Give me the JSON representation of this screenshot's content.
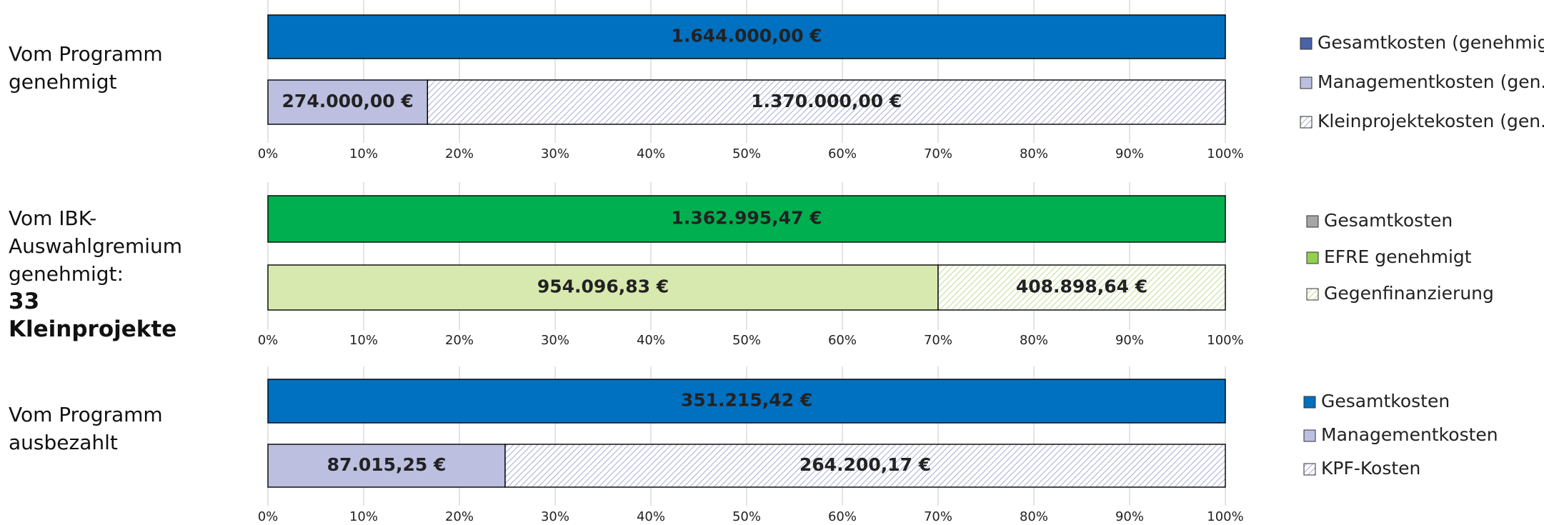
{
  "chart_data": [
    {
      "type": "bar",
      "title": "Vom Programm genehmigt",
      "stacked": "percent",
      "xlim": [
        0,
        100
      ],
      "xticks": [
        {
          "value": 0,
          "label": "0%"
        },
        {
          "value": 10,
          "label": "10%"
        },
        {
          "value": 20,
          "label": "20%"
        },
        {
          "value": 30,
          "label": "30%"
        },
        {
          "value": 40,
          "label": "40%"
        },
        {
          "value": 50,
          "label": "50%"
        },
        {
          "value": 60,
          "label": "60%"
        },
        {
          "value": 70,
          "label": "70%"
        },
        {
          "value": 80,
          "label": "80%"
        },
        {
          "value": 90,
          "label": "90%"
        },
        {
          "value": 100,
          "label": "100%"
        }
      ],
      "grid": true,
      "series": [
        {
          "name": "Gesamtkosten (genehmigt)",
          "color": "#0070c0",
          "legend_color": "#4a62a8",
          "values": [
            1644000,
            null
          ],
          "value_labels": [
            "1.644.000,00 €",
            null
          ]
        },
        {
          "name": "Managementkosten (gen.)",
          "color": "#bcbfe0",
          "values": [
            null,
            274000
          ],
          "value_labels": [
            null,
            "274.000,00 €"
          ]
        },
        {
          "name": "Kleinprojektekosten (gen.)",
          "color": "#aeb1d6",
          "pattern": "hatch",
          "values": [
            null,
            1370000
          ],
          "value_labels": [
            null,
            "1.370.000,00 €"
          ]
        }
      ]
    },
    {
      "type": "bar",
      "title": "Vom IBK-Auswahlgremium genehmigt:",
      "subtitle": "33 Kleinprojekte",
      "stacked": "percent",
      "xlim": [
        0,
        100
      ],
      "xticks": [
        {
          "value": 0,
          "label": "0%"
        },
        {
          "value": 10,
          "label": "10%"
        },
        {
          "value": 20,
          "label": "20%"
        },
        {
          "value": 30,
          "label": "30%"
        },
        {
          "value": 40,
          "label": "40%"
        },
        {
          "value": 50,
          "label": "50%"
        },
        {
          "value": 60,
          "label": "60%"
        },
        {
          "value": 70,
          "label": "70%"
        },
        {
          "value": 80,
          "label": "80%"
        },
        {
          "value": 90,
          "label": "90%"
        },
        {
          "value": 100,
          "label": "100%"
        }
      ],
      "grid": true,
      "series": [
        {
          "name": "Gesamtkosten",
          "color": "#00b050",
          "legend_color": "#a6a6a6",
          "values": [
            1362995.47,
            null
          ],
          "value_labels": [
            "1.362.995,47 €",
            null
          ]
        },
        {
          "name": "EFRE genehmigt",
          "color": "#d8e9b0",
          "legend_color": "#92d050",
          "values": [
            null,
            954096.83
          ],
          "value_labels": [
            null,
            "954.096,83 €"
          ]
        },
        {
          "name": "Gegenfinanzierung",
          "color": "#c5df9a",
          "pattern": "hatch",
          "values": [
            null,
            408898.64
          ],
          "value_labels": [
            null,
            "408.898,64 €"
          ]
        }
      ]
    },
    {
      "type": "bar",
      "title": "Vom Programm ausbezahlt",
      "stacked": "percent",
      "xlim": [
        0,
        100
      ],
      "xticks": [
        {
          "value": 0,
          "label": "0%"
        },
        {
          "value": 10,
          "label": "10%"
        },
        {
          "value": 20,
          "label": "20%"
        },
        {
          "value": 30,
          "label": "30%"
        },
        {
          "value": 40,
          "label": "40%"
        },
        {
          "value": 50,
          "label": "50%"
        },
        {
          "value": 60,
          "label": "60%"
        },
        {
          "value": 70,
          "label": "70%"
        },
        {
          "value": 80,
          "label": "80%"
        },
        {
          "value": 90,
          "label": "90%"
        },
        {
          "value": 100,
          "label": "100%"
        }
      ],
      "grid": true,
      "series": [
        {
          "name": "Gesamtkosten",
          "color": "#0070c0",
          "values": [
            351215.42,
            null
          ],
          "value_labels": [
            "351.215,42 €",
            null
          ]
        },
        {
          "name": "Managementkosten",
          "color": "#bcbfe0",
          "values": [
            null,
            87015.25
          ],
          "value_labels": [
            null,
            "87.015,25 €"
          ]
        },
        {
          "name": "KPF-Kosten",
          "color": "#aeb1d6",
          "pattern": "hatch",
          "values": [
            null,
            264200.17
          ],
          "value_labels": [
            null,
            "264.200,17 €"
          ]
        }
      ]
    }
  ]
}
